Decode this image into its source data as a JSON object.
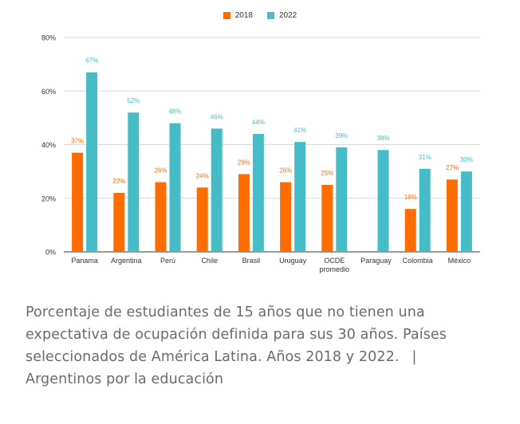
{
  "chart_data": {
    "type": "bar",
    "categories": [
      "Panama",
      "Argentina",
      "Perú",
      "Chile",
      "Brasil",
      "Uruguay",
      "OCDE promedio",
      "Paraguay",
      "Colombia",
      "México"
    ],
    "series": [
      {
        "name": "2018",
        "color": "#ff6d00",
        "values": [
          37,
          22,
          26,
          24,
          29,
          26,
          25,
          null,
          16,
          27
        ]
      },
      {
        "name": "2022",
        "color": "#46bdc6",
        "values": [
          67,
          52,
          48,
          46,
          44,
          41,
          39,
          38,
          31,
          30
        ]
      }
    ],
    "value_labels": {
      "2018": [
        "37%",
        "22%",
        "26%",
        "24%",
        "29%",
        "26%",
        "25%",
        "",
        "16%",
        "27%"
      ],
      "2022": [
        "67%",
        "52%",
        "48%",
        "46%",
        "44%",
        "41%",
        "39%",
        "38%",
        "31%",
        "30%"
      ]
    },
    "yticks": [
      {
        "value": 0,
        "label": "0%"
      },
      {
        "value": 20,
        "label": "20%"
      },
      {
        "value": 40,
        "label": "40%"
      },
      {
        "value": 60,
        "label": "60%"
      },
      {
        "value": 80,
        "label": "80%"
      }
    ],
    "ylim": [
      0,
      80
    ],
    "grid": true,
    "legend_position": "top-center"
  },
  "caption": {
    "text": "Porcentaje de estudiantes de 15 años que no tienen una expectativa de ocupación definida para sus 30 años. Países seleccionados de América Latina. Años 2018 y 2022.",
    "separator": "|",
    "source": "Argentinos por la educación"
  }
}
